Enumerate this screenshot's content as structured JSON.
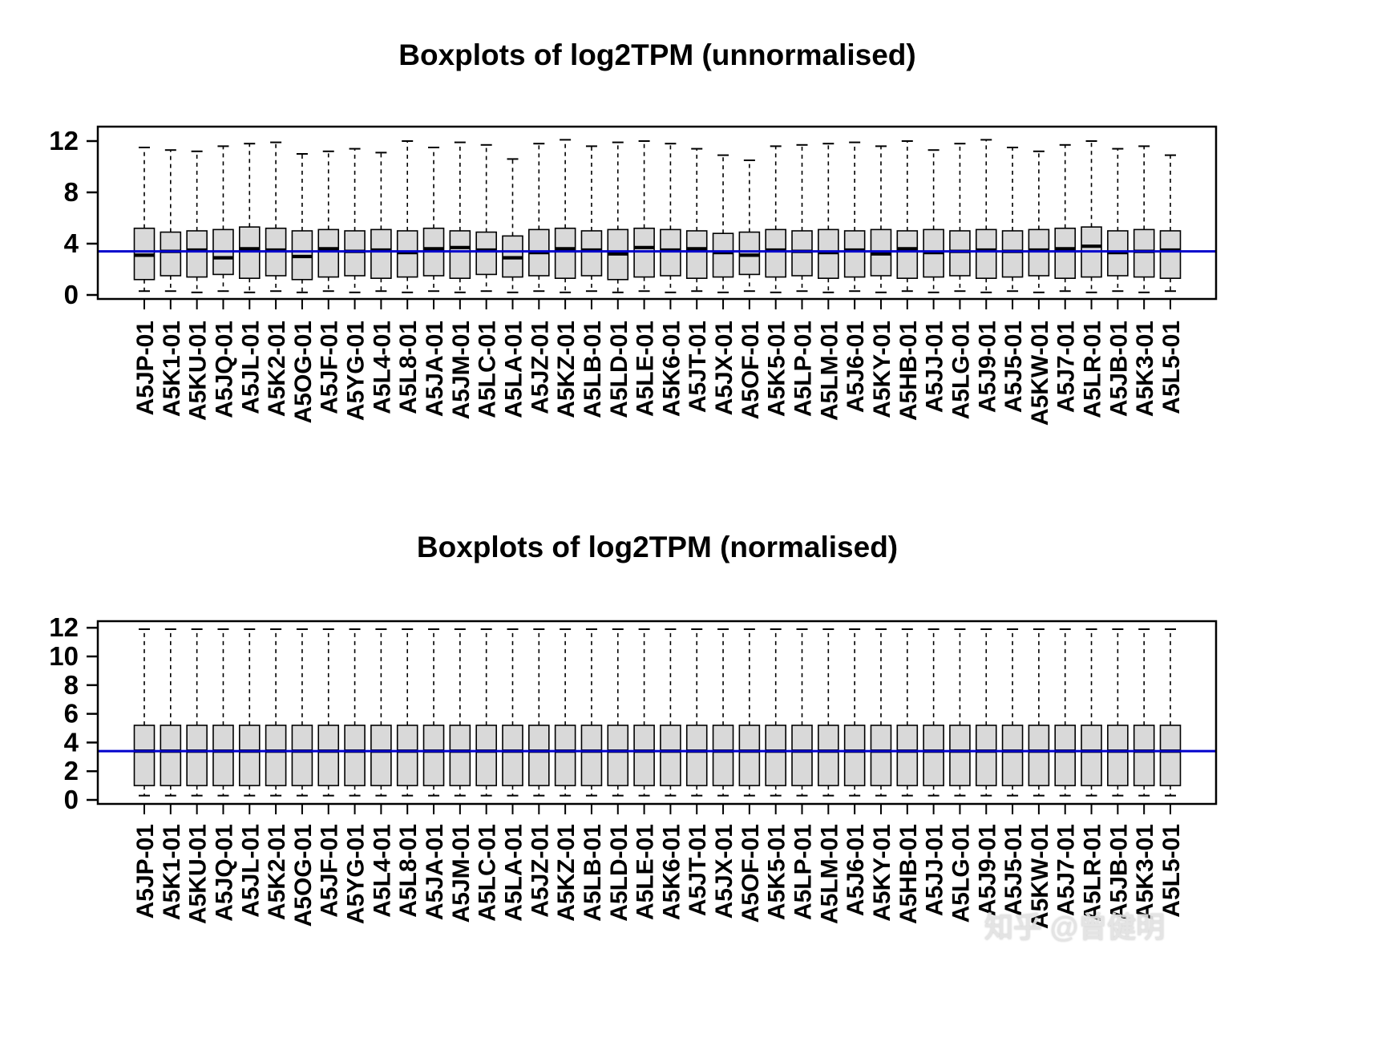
{
  "watermark": {
    "text": "知乎 @曾健明",
    "color": "#e2e2e2"
  },
  "chart_data": [
    {
      "type": "boxplot",
      "title": "Boxplots of log2TPM (unnormalised)",
      "ylabel": "",
      "xlabel": "",
      "ylim": [
        0,
        12.5
      ],
      "y_ticks": [
        0,
        4,
        8,
        12
      ],
      "grid": false,
      "box_fill": "#d9d9d9",
      "box_stroke": "#000000",
      "reference_line": {
        "value": 3.4,
        "color": "#0000cc"
      },
      "categories": [
        "A5JP-01",
        "A5K1-01",
        "A5KU-01",
        "A5JQ-01",
        "A5JL-01",
        "A5K2-01",
        "A5OG-01",
        "A5JF-01",
        "A5YG-01",
        "A5L4-01",
        "A5L8-01",
        "A5JA-01",
        "A5JM-01",
        "A5LC-01",
        "A5LA-01",
        "A5JZ-01",
        "A5KZ-01",
        "A5LB-01",
        "A5LD-01",
        "A5LE-01",
        "A5K6-01",
        "A5JT-01",
        "A5JX-01",
        "A5OF-01",
        "A5K5-01",
        "A5LP-01",
        "A5LM-01",
        "A5J6-01",
        "A5KY-01",
        "A5HB-01",
        "A5JJ-01",
        "A5LG-01",
        "A5J9-01",
        "A5J5-01",
        "A5KW-01",
        "A5J7-01",
        "A5LR-01",
        "A5JB-01",
        "A5K3-01",
        "A5L5-01"
      ],
      "series": [
        {
          "name": "log2TPM",
          "stats_format": [
            "whisker_low",
            "q1",
            "median",
            "q3",
            "whisker_high"
          ],
          "stats": [
            [
              0.3,
              1.2,
              3.1,
              5.2,
              11.5
            ],
            [
              0.3,
              1.5,
              3.4,
              4.9,
              11.3
            ],
            [
              0.2,
              1.4,
              3.5,
              5.0,
              11.2
            ],
            [
              0.3,
              1.6,
              2.9,
              5.1,
              11.6
            ],
            [
              0.2,
              1.3,
              3.6,
              5.3,
              11.8
            ],
            [
              0.3,
              1.5,
              3.5,
              5.2,
              11.9
            ],
            [
              0.2,
              1.2,
              3.0,
              5.0,
              11.0
            ],
            [
              0.3,
              1.4,
              3.6,
              5.1,
              11.2
            ],
            [
              0.2,
              1.5,
              3.4,
              5.0,
              11.4
            ],
            [
              0.3,
              1.3,
              3.5,
              5.1,
              11.1
            ],
            [
              0.2,
              1.4,
              3.3,
              5.0,
              12.0
            ],
            [
              0.3,
              1.5,
              3.6,
              5.2,
              11.5
            ],
            [
              0.2,
              1.3,
              3.7,
              5.0,
              11.9
            ],
            [
              0.3,
              1.6,
              3.5,
              4.9,
              11.7
            ],
            [
              0.2,
              1.4,
              2.9,
              4.6,
              10.6
            ],
            [
              0.3,
              1.5,
              3.3,
              5.1,
              11.8
            ],
            [
              0.2,
              1.3,
              3.6,
              5.2,
              12.1
            ],
            [
              0.3,
              1.5,
              3.5,
              5.0,
              11.6
            ],
            [
              0.2,
              1.2,
              3.2,
              5.1,
              11.9
            ],
            [
              0.3,
              1.4,
              3.7,
              5.2,
              12.0
            ],
            [
              0.2,
              1.5,
              3.5,
              5.1,
              11.8
            ],
            [
              0.3,
              1.3,
              3.6,
              5.0,
              11.4
            ],
            [
              0.2,
              1.4,
              3.3,
              4.8,
              10.9
            ],
            [
              0.3,
              1.6,
              3.1,
              4.9,
              10.5
            ],
            [
              0.2,
              1.4,
              3.5,
              5.1,
              11.6
            ],
            [
              0.3,
              1.5,
              3.4,
              5.0,
              11.7
            ],
            [
              0.2,
              1.3,
              3.3,
              5.1,
              11.8
            ],
            [
              0.3,
              1.4,
              3.5,
              5.0,
              11.9
            ],
            [
              0.2,
              1.5,
              3.2,
              5.1,
              11.6
            ],
            [
              0.3,
              1.3,
              3.6,
              5.0,
              12.0
            ],
            [
              0.2,
              1.4,
              3.3,
              5.1,
              11.3
            ],
            [
              0.3,
              1.5,
              3.4,
              5.0,
              11.8
            ],
            [
              0.2,
              1.3,
              3.5,
              5.1,
              12.1
            ],
            [
              0.3,
              1.4,
              3.4,
              5.0,
              11.5
            ],
            [
              0.2,
              1.5,
              3.5,
              5.1,
              11.2
            ],
            [
              0.3,
              1.3,
              3.6,
              5.2,
              11.7
            ],
            [
              0.2,
              1.4,
              3.8,
              5.3,
              12.0
            ],
            [
              0.3,
              1.5,
              3.3,
              5.0,
              11.4
            ],
            [
              0.2,
              1.4,
              3.4,
              5.1,
              11.6
            ],
            [
              0.3,
              1.3,
              3.5,
              5.0,
              10.9
            ]
          ]
        }
      ]
    },
    {
      "type": "boxplot",
      "title": "Boxplots of log2TPM (normalised)",
      "ylabel": "",
      "xlabel": "",
      "ylim": [
        0,
        12.5
      ],
      "y_ticks": [
        0,
        2,
        4,
        6,
        8,
        10,
        12
      ],
      "grid": false,
      "box_fill": "#d9d9d9",
      "box_stroke": "#000000",
      "reference_line": {
        "value": 3.4,
        "color": "#0000cc"
      },
      "categories": [
        "A5JP-01",
        "A5K1-01",
        "A5KU-01",
        "A5JQ-01",
        "A5JL-01",
        "A5K2-01",
        "A5OG-01",
        "A5JF-01",
        "A5YG-01",
        "A5L4-01",
        "A5L8-01",
        "A5JA-01",
        "A5JM-01",
        "A5LC-01",
        "A5LA-01",
        "A5JZ-01",
        "A5KZ-01",
        "A5LB-01",
        "A5LD-01",
        "A5LE-01",
        "A5K6-01",
        "A5JT-01",
        "A5JX-01",
        "A5OF-01",
        "A5K5-01",
        "A5LP-01",
        "A5LM-01",
        "A5J6-01",
        "A5KY-01",
        "A5HB-01",
        "A5JJ-01",
        "A5LG-01",
        "A5J9-01",
        "A5J5-01",
        "A5KW-01",
        "A5J7-01",
        "A5LR-01",
        "A5JB-01",
        "A5K3-01",
        "A5L5-01"
      ],
      "series": [
        {
          "name": "log2TPM",
          "stats_format": [
            "whisker_low",
            "q1",
            "median",
            "q3",
            "whisker_high"
          ],
          "uniform_stats": [
            0.3,
            1.0,
            3.4,
            5.2,
            11.9
          ]
        }
      ]
    }
  ]
}
